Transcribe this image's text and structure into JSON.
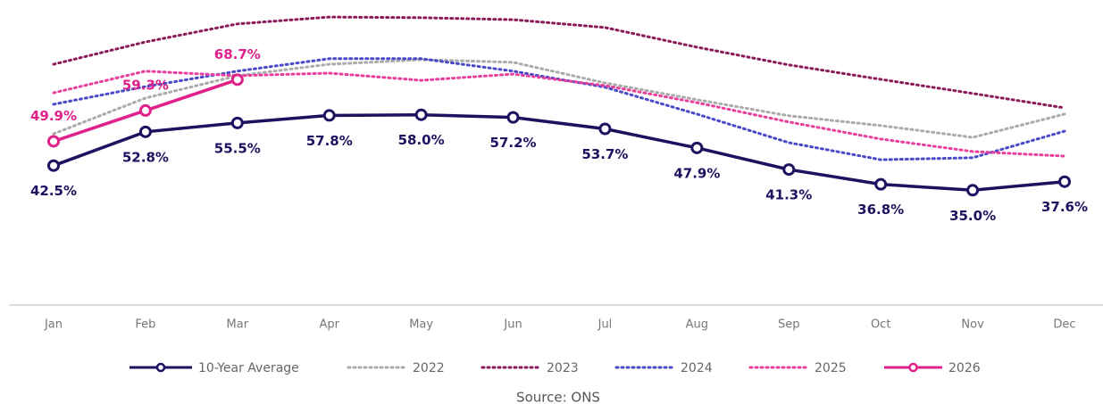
{
  "chart_data": {
    "type": "line",
    "categories": [
      "Jan",
      "Feb",
      "Mar",
      "Apr",
      "May",
      "Jun",
      "Jul",
      "Aug",
      "Sep",
      "Oct",
      "Nov",
      "Dec"
    ],
    "ylim": [
      0,
      90
    ],
    "source": "Source: ONS",
    "series": [
      {
        "name": "10-Year Average",
        "color": "#201060",
        "style": "solid",
        "markers": true,
        "label_position": "below",
        "values": [
          42.5,
          52.8,
          55.5,
          57.8,
          58.0,
          57.2,
          53.7,
          47.9,
          41.3,
          36.8,
          35.0,
          37.6
        ],
        "value_labels": [
          "42.5%",
          "52.8%",
          "55.5%",
          "57.8%",
          "58.0%",
          "57.2%",
          "53.7%",
          "47.9%",
          "41.3%",
          "36.8%",
          "35.0%",
          "37.6%"
        ]
      },
      {
        "name": "2022",
        "color": "#aaaaaa",
        "style": "dotted",
        "values": [
          52.2,
          63.1,
          69.9,
          73.4,
          74.8,
          74.0,
          67.7,
          62.6,
          57.7,
          54.7,
          51.1,
          58.2
        ]
      },
      {
        "name": "2023",
        "color": "#8b1a5a",
        "style": "dotted",
        "values": [
          73.4,
          80.2,
          85.7,
          87.8,
          87.6,
          87.0,
          84.6,
          78.6,
          73.2,
          68.8,
          64.5,
          60.1
        ]
      },
      {
        "name": "2024",
        "color": "#4a4ac8",
        "style": "dotted",
        "values": [
          61.2,
          66.6,
          71.3,
          75.1,
          75.1,
          71.3,
          66.4,
          58.2,
          49.5,
          44.3,
          44.9,
          53.0
        ]
      },
      {
        "name": "2025",
        "color": "#e83e9c",
        "style": "dotted",
        "values": [
          64.7,
          71.3,
          69.9,
          70.7,
          68.5,
          70.4,
          66.9,
          61.7,
          55.8,
          50.6,
          46.8,
          45.4
        ]
      },
      {
        "name": "2026",
        "color": "#e0218a",
        "style": "solid",
        "markers": true,
        "label_position": "above",
        "values": [
          49.9,
          59.3,
          68.7,
          null,
          null,
          null,
          null,
          null,
          null,
          null,
          null,
          null
        ],
        "value_labels": [
          "49.9%",
          "59.3%",
          "68.7%",
          null,
          null,
          null,
          null,
          null,
          null,
          null,
          null,
          null
        ]
      }
    ]
  }
}
